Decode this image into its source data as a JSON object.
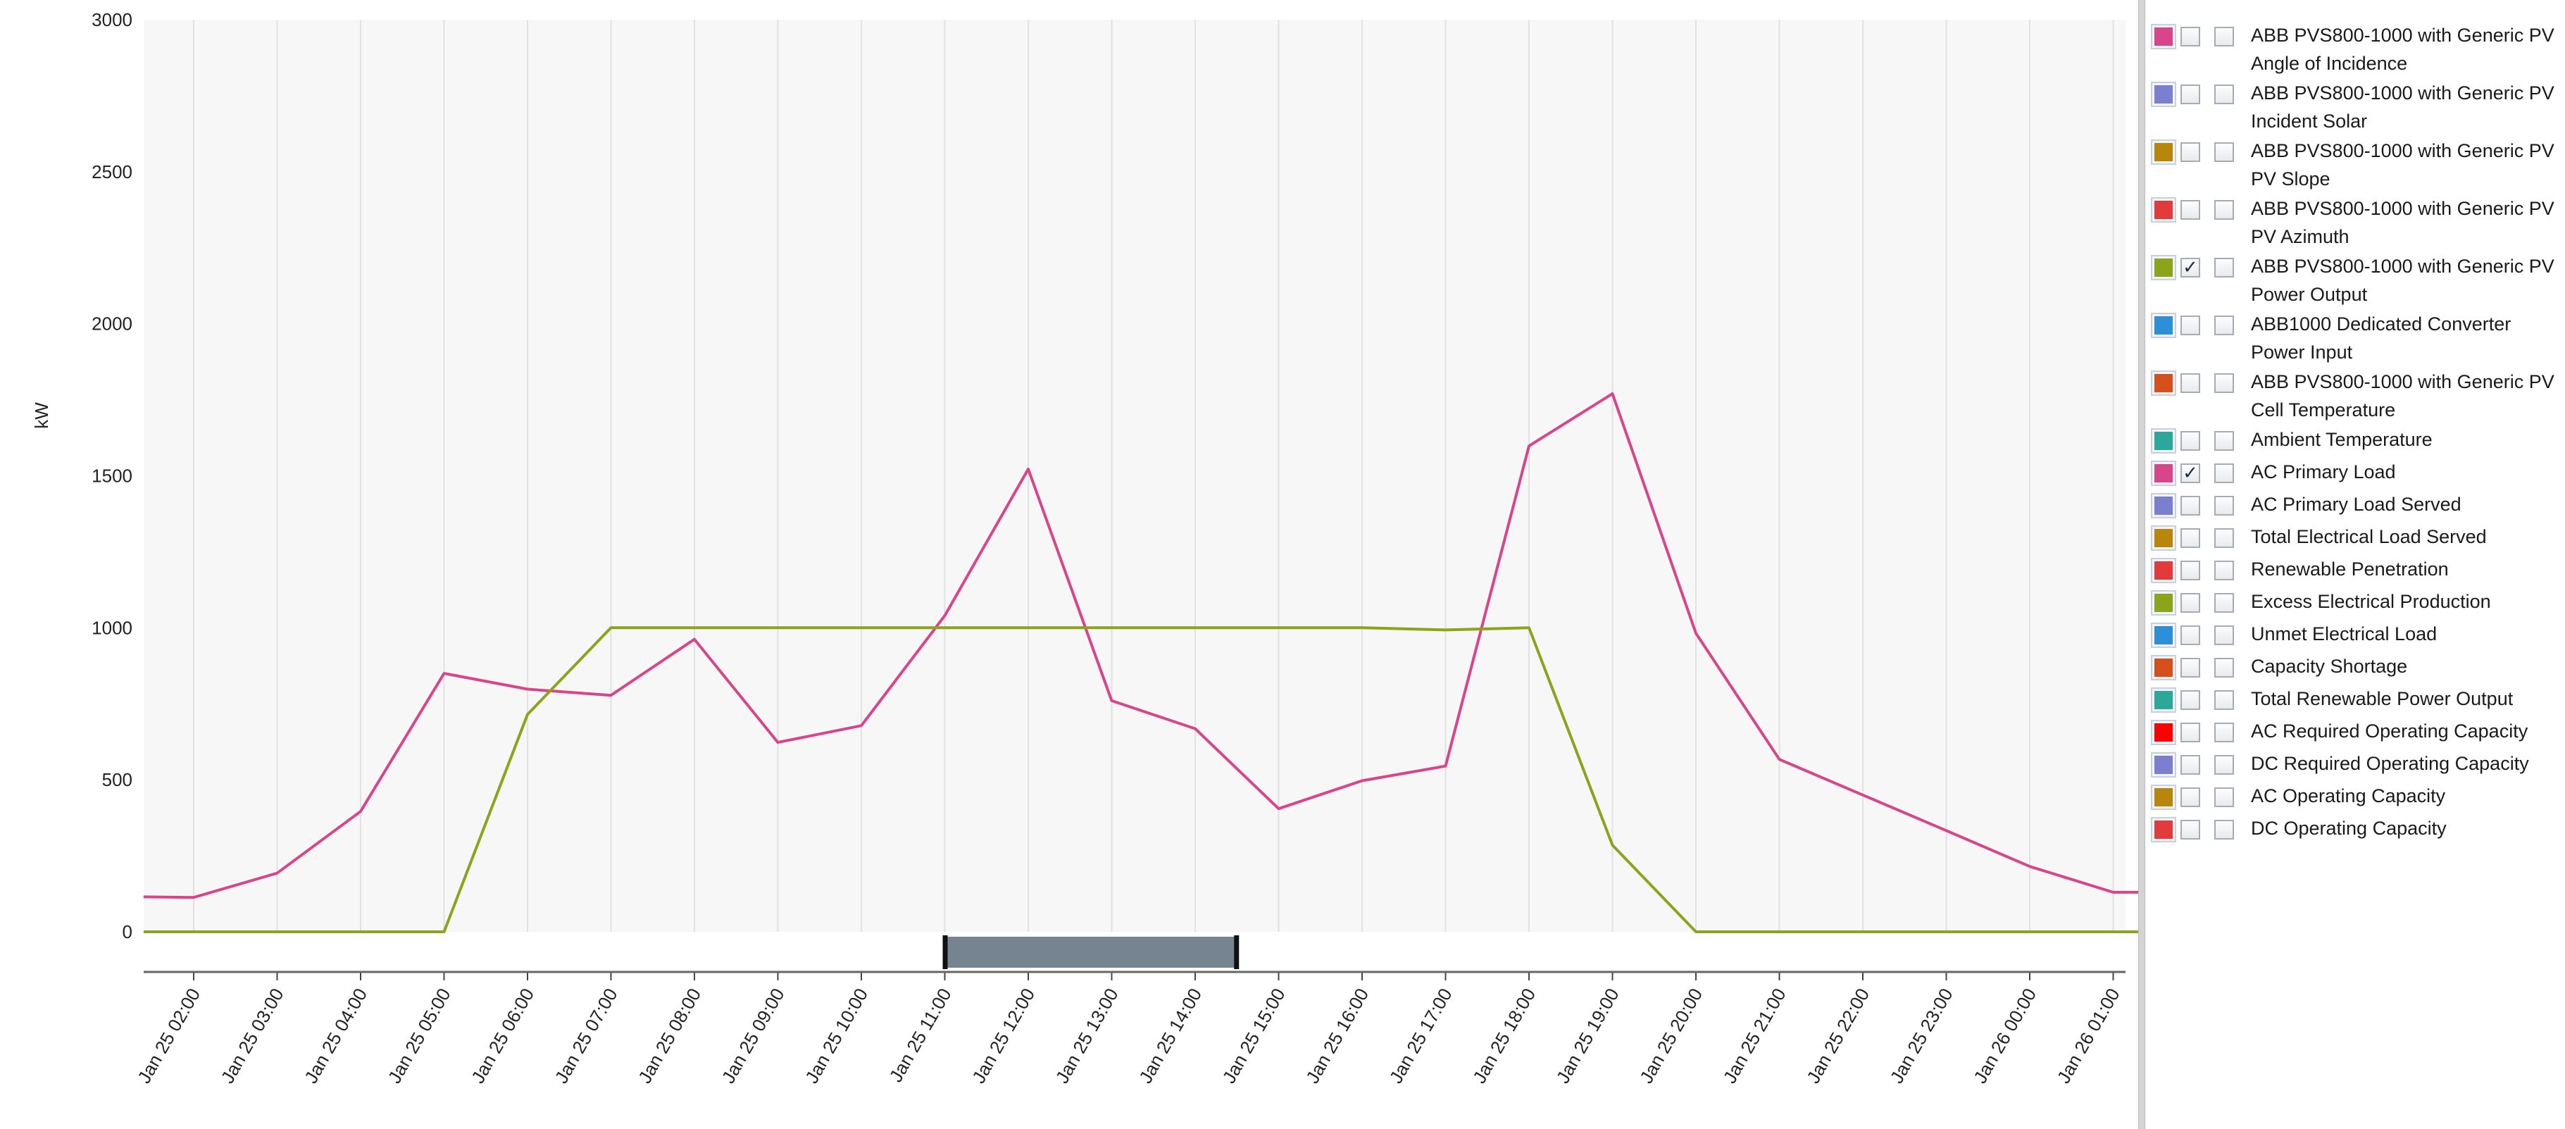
{
  "colors": {
    "ac_primary_load": "#d9458a",
    "pv_power_output": "#8ca31c",
    "grid": "#e2e2e2",
    "plot_bg": "#f7f7f7",
    "scroll_thumb": "#76848f"
  },
  "chart_data": {
    "type": "line",
    "ylabel": "kW",
    "xlabel": "",
    "ylim": [
      0,
      3000
    ],
    "yticks": [
      "0",
      "500",
      "1000",
      "1500",
      "2000",
      "2500",
      "3000"
    ],
    "x": [
      "Jan 25 02:00",
      "Jan 25 03:00",
      "Jan 25 04:00",
      "Jan 25 05:00",
      "Jan 25 06:00",
      "Jan 25 07:00",
      "Jan 25 08:00",
      "Jan 25 09:00",
      "Jan 25 10:00",
      "Jan 25 11:00",
      "Jan 25 12:00",
      "Jan 25 13:00",
      "Jan 25 14:00",
      "Jan 25 15:00",
      "Jan 25 16:00",
      "Jan 25 17:00",
      "Jan 25 18:00",
      "Jan 25 19:00",
      "Jan 25 20:00",
      "Jan 25 21:00",
      "Jan 25 22:00",
      "Jan 25 23:00",
      "Jan 26 00:00",
      "Jan 26 01:00"
    ],
    "series": [
      {
        "name": "AC Primary Load",
        "color": "#d9458a",
        "x": [
          "Jan 25 01:24",
          "Jan 25 02:00",
          "Jan 25 03:00",
          "Jan 25 04:00",
          "Jan 25 05:00",
          "Jan 25 06:00",
          "Jan 25 07:00",
          "Jan 25 08:00",
          "Jan 25 09:00",
          "Jan 25 10:00",
          "Jan 25 11:00",
          "Jan 25 12:00",
          "Jan 25 13:00",
          "Jan 25 14:00",
          "Jan 25 15:00",
          "Jan 25 16:00",
          "Jan 25 17:00",
          "Jan 25 18:00",
          "Jan 25 19:00",
          "Jan 25 20:00",
          "Jan 25 21:00",
          "Jan 25 22:00",
          "Jan 25 23:00",
          "Jan 26 00:00",
          "Jan 26 01:00",
          "Jan 26 01:18"
        ],
        "values": [
          115,
          113,
          193,
          396,
          850,
          798,
          778,
          962,
          623,
          678,
          1040,
          1522,
          760,
          668,
          405,
          497,
          545,
          1598,
          1770,
          982,
          567,
          450,
          333,
          215,
          130,
          130
        ]
      },
      {
        "name": "ABB PVS800-1000 with Generic PV Power Output",
        "color": "#8ca31c",
        "x": [
          "Jan 25 01:24",
          "Jan 25 02:00",
          "Jan 25 03:00",
          "Jan 25 04:00",
          "Jan 25 05:00",
          "Jan 25 06:00",
          "Jan 25 07:00",
          "Jan 25 08:00",
          "Jan 25 09:00",
          "Jan 25 10:00",
          "Jan 25 11:00",
          "Jan 25 12:00",
          "Jan 25 13:00",
          "Jan 25 14:00",
          "Jan 25 15:00",
          "Jan 25 16:00",
          "Jan 25 17:00",
          "Jan 25 18:00",
          "Jan 25 19:00",
          "Jan 25 20:00",
          "Jan 25 21:00",
          "Jan 25 22:00",
          "Jan 25 23:00",
          "Jan 26 00:00",
          "Jan 26 01:00",
          "Jan 26 01:18"
        ],
        "values": [
          0,
          0,
          0,
          0,
          0,
          715,
          1000,
          1000,
          1000,
          1000,
          1000,
          1000,
          1000,
          1000,
          1000,
          1000,
          993,
          1000,
          285,
          0,
          0,
          0,
          0,
          0,
          0,
          0
        ]
      }
    ],
    "scroll_range": [
      "Jan 25 11:00",
      "Jan 25 14:30"
    ],
    "grid": true,
    "legend_placement": "right"
  },
  "legend": {
    "items": [
      {
        "label": "ABB PVS800-1000 with Generic PV Angle of Incidence",
        "color": "#d9458a",
        "checked": false,
        "lines": 2
      },
      {
        "label": "ABB PVS800-1000 with Generic PV Incident Solar",
        "color": "#7b7fd0",
        "checked": false,
        "lines": 2
      },
      {
        "label": "ABB PVS800-1000 with Generic PV PV Slope",
        "color": "#b8860b",
        "checked": false,
        "lines": 2
      },
      {
        "label": "ABB PVS800-1000 with Generic PV PV Azimuth",
        "color": "#e23b3b",
        "checked": false,
        "lines": 2
      },
      {
        "label": "ABB PVS800-1000 with Generic PV Power Output",
        "color": "#8ca31c",
        "checked": true,
        "lines": 2
      },
      {
        "label": "ABB1000 Dedicated Converter Power Input",
        "color": "#2c8fd8",
        "checked": false,
        "lines": 2
      },
      {
        "label": "ABB PVS800-1000 with Generic PV Cell Temperature",
        "color": "#d5501c",
        "checked": false,
        "lines": 2
      },
      {
        "label": "Ambient Temperature",
        "color": "#2ba89a",
        "checked": false,
        "lines": 1
      },
      {
        "label": "AC Primary Load",
        "color": "#d9458a",
        "checked": true,
        "lines": 1
      },
      {
        "label": "AC Primary Load Served",
        "color": "#7b7fd0",
        "checked": false,
        "lines": 1
      },
      {
        "label": "Total Electrical Load Served",
        "color": "#b8860b",
        "checked": false,
        "lines": 1
      },
      {
        "label": "Renewable Penetration",
        "color": "#e23b3b",
        "checked": false,
        "lines": 1
      },
      {
        "label": "Excess Electrical Production",
        "color": "#8ca31c",
        "checked": false,
        "lines": 1
      },
      {
        "label": "Unmet Electrical Load",
        "color": "#2c8fd8",
        "checked": false,
        "lines": 1
      },
      {
        "label": "Capacity Shortage",
        "color": "#d5501c",
        "checked": false,
        "lines": 1
      },
      {
        "label": "Total Renewable Power Output",
        "color": "#2ba89a",
        "checked": false,
        "lines": 1
      },
      {
        "label": "AC Required Operating Capacity",
        "color": "#ff0000",
        "checked": false,
        "lines": 1
      },
      {
        "label": "DC Required Operating Capacity",
        "color": "#7b7fd0",
        "checked": false,
        "lines": 1
      },
      {
        "label": "AC Operating Capacity",
        "color": "#b8860b",
        "checked": false,
        "lines": 1
      },
      {
        "label": "DC Operating Capacity",
        "color": "#e23b3b",
        "checked": false,
        "lines": 1
      }
    ]
  }
}
